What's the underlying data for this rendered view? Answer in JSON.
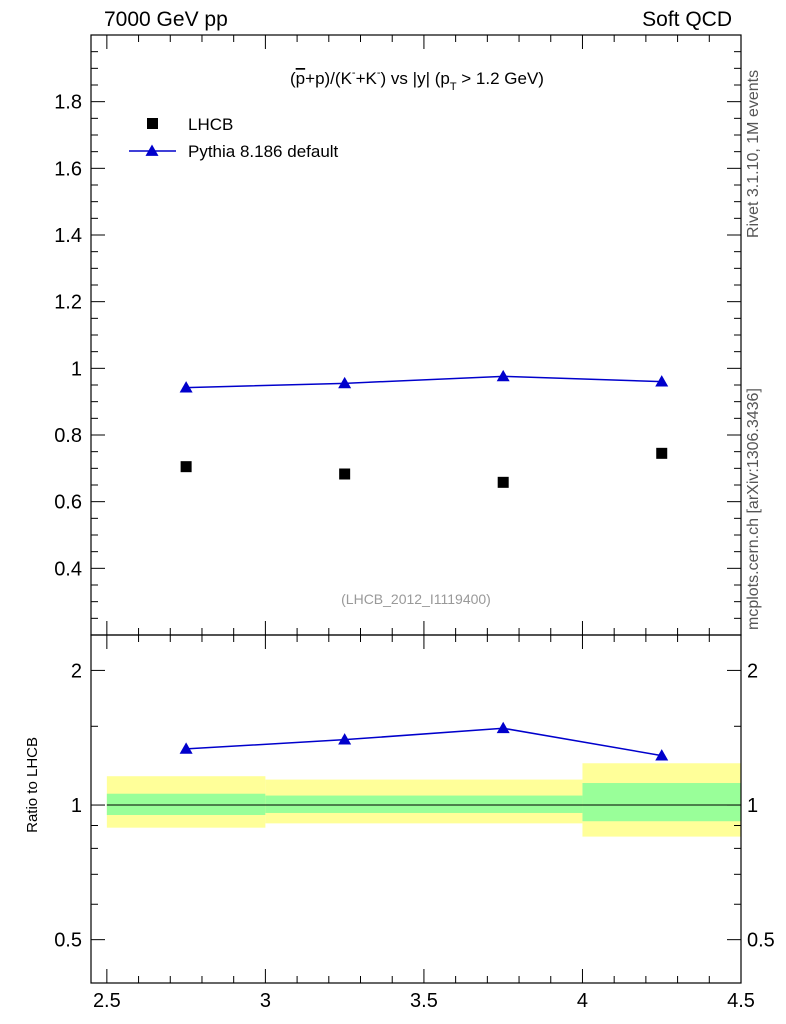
{
  "header": {
    "left": "7000 GeV pp",
    "right": "Soft QCD"
  },
  "side_labels": {
    "rivet": "Rivet 3.1.10,  1M events",
    "mcplots": "mcplots.cern.ch [arXiv:1306.3436]"
  },
  "chart_data": [
    {
      "type": "scatter",
      "title": "(p̅+p)/(K⁻+K⁻) vs |y| (pT > 1.2 GeV)",
      "title_parts": {
        "a": "(",
        "p_bar": "p",
        "b": "+p)/(K",
        "sup1": "-",
        "c": "+K",
        "sup2": "-",
        "d": ") vs |y| (p",
        "sub": "T",
        "e": " > 1.2 GeV)"
      },
      "watermark": "(LHCB_2012_I1119400)",
      "xlim": [
        2.45,
        4.5
      ],
      "ylim": [
        0.2,
        2.0
      ],
      "y_ticks": [
        "0.4",
        "0.6",
        "0.8",
        "1",
        "1.2",
        "1.4",
        "1.6",
        "1.8"
      ],
      "legend_position": "top-left",
      "series": [
        {
          "name": "LHCB",
          "marker": "square",
          "color": "#000000",
          "x": [
            2.75,
            3.25,
            3.75,
            4.25
          ],
          "y": [
            0.705,
            0.683,
            0.658,
            0.745
          ]
        },
        {
          "name": "Pythia 8.186 default",
          "marker": "triangle",
          "line": true,
          "color": "#0000cc",
          "x": [
            2.75,
            3.25,
            3.75,
            4.25
          ],
          "y": [
            0.942,
            0.955,
            0.976,
            0.96
          ]
        }
      ]
    },
    {
      "type": "line",
      "ylabel": "Ratio to LHCB",
      "y_scale": "log",
      "xlim": [
        2.45,
        4.5
      ],
      "ylim": [
        0.4,
        2.4
      ],
      "y_ticks_left": [
        "0.5",
        "1",
        "2"
      ],
      "y_ticks_right": [
        "0.5",
        "1",
        "2"
      ],
      "x_ticks": [
        "2.5",
        "3",
        "3.5",
        "4",
        "4.5"
      ],
      "reference_line": 1,
      "uncertainty_bands": [
        {
          "x": [
            2.5,
            3.0
          ],
          "inner": [
            0.95,
            1.06
          ],
          "outer": [
            0.89,
            1.16
          ]
        },
        {
          "x": [
            3.0,
            4.0
          ],
          "inner": [
            0.96,
            1.05
          ],
          "outer": [
            0.91,
            1.14
          ]
        },
        {
          "x": [
            4.0,
            4.5
          ],
          "inner": [
            0.92,
            1.12
          ],
          "outer": [
            0.85,
            1.24
          ]
        }
      ],
      "inner_band_color": "#99ff99",
      "outer_band_color": "#ffff99",
      "series": [
        {
          "name": "Pythia 8.186 default",
          "marker": "triangle",
          "color": "#0000cc",
          "x": [
            2.75,
            3.25,
            3.75,
            4.25
          ],
          "y": [
            1.335,
            1.4,
            1.485,
            1.29
          ]
        }
      ]
    }
  ]
}
